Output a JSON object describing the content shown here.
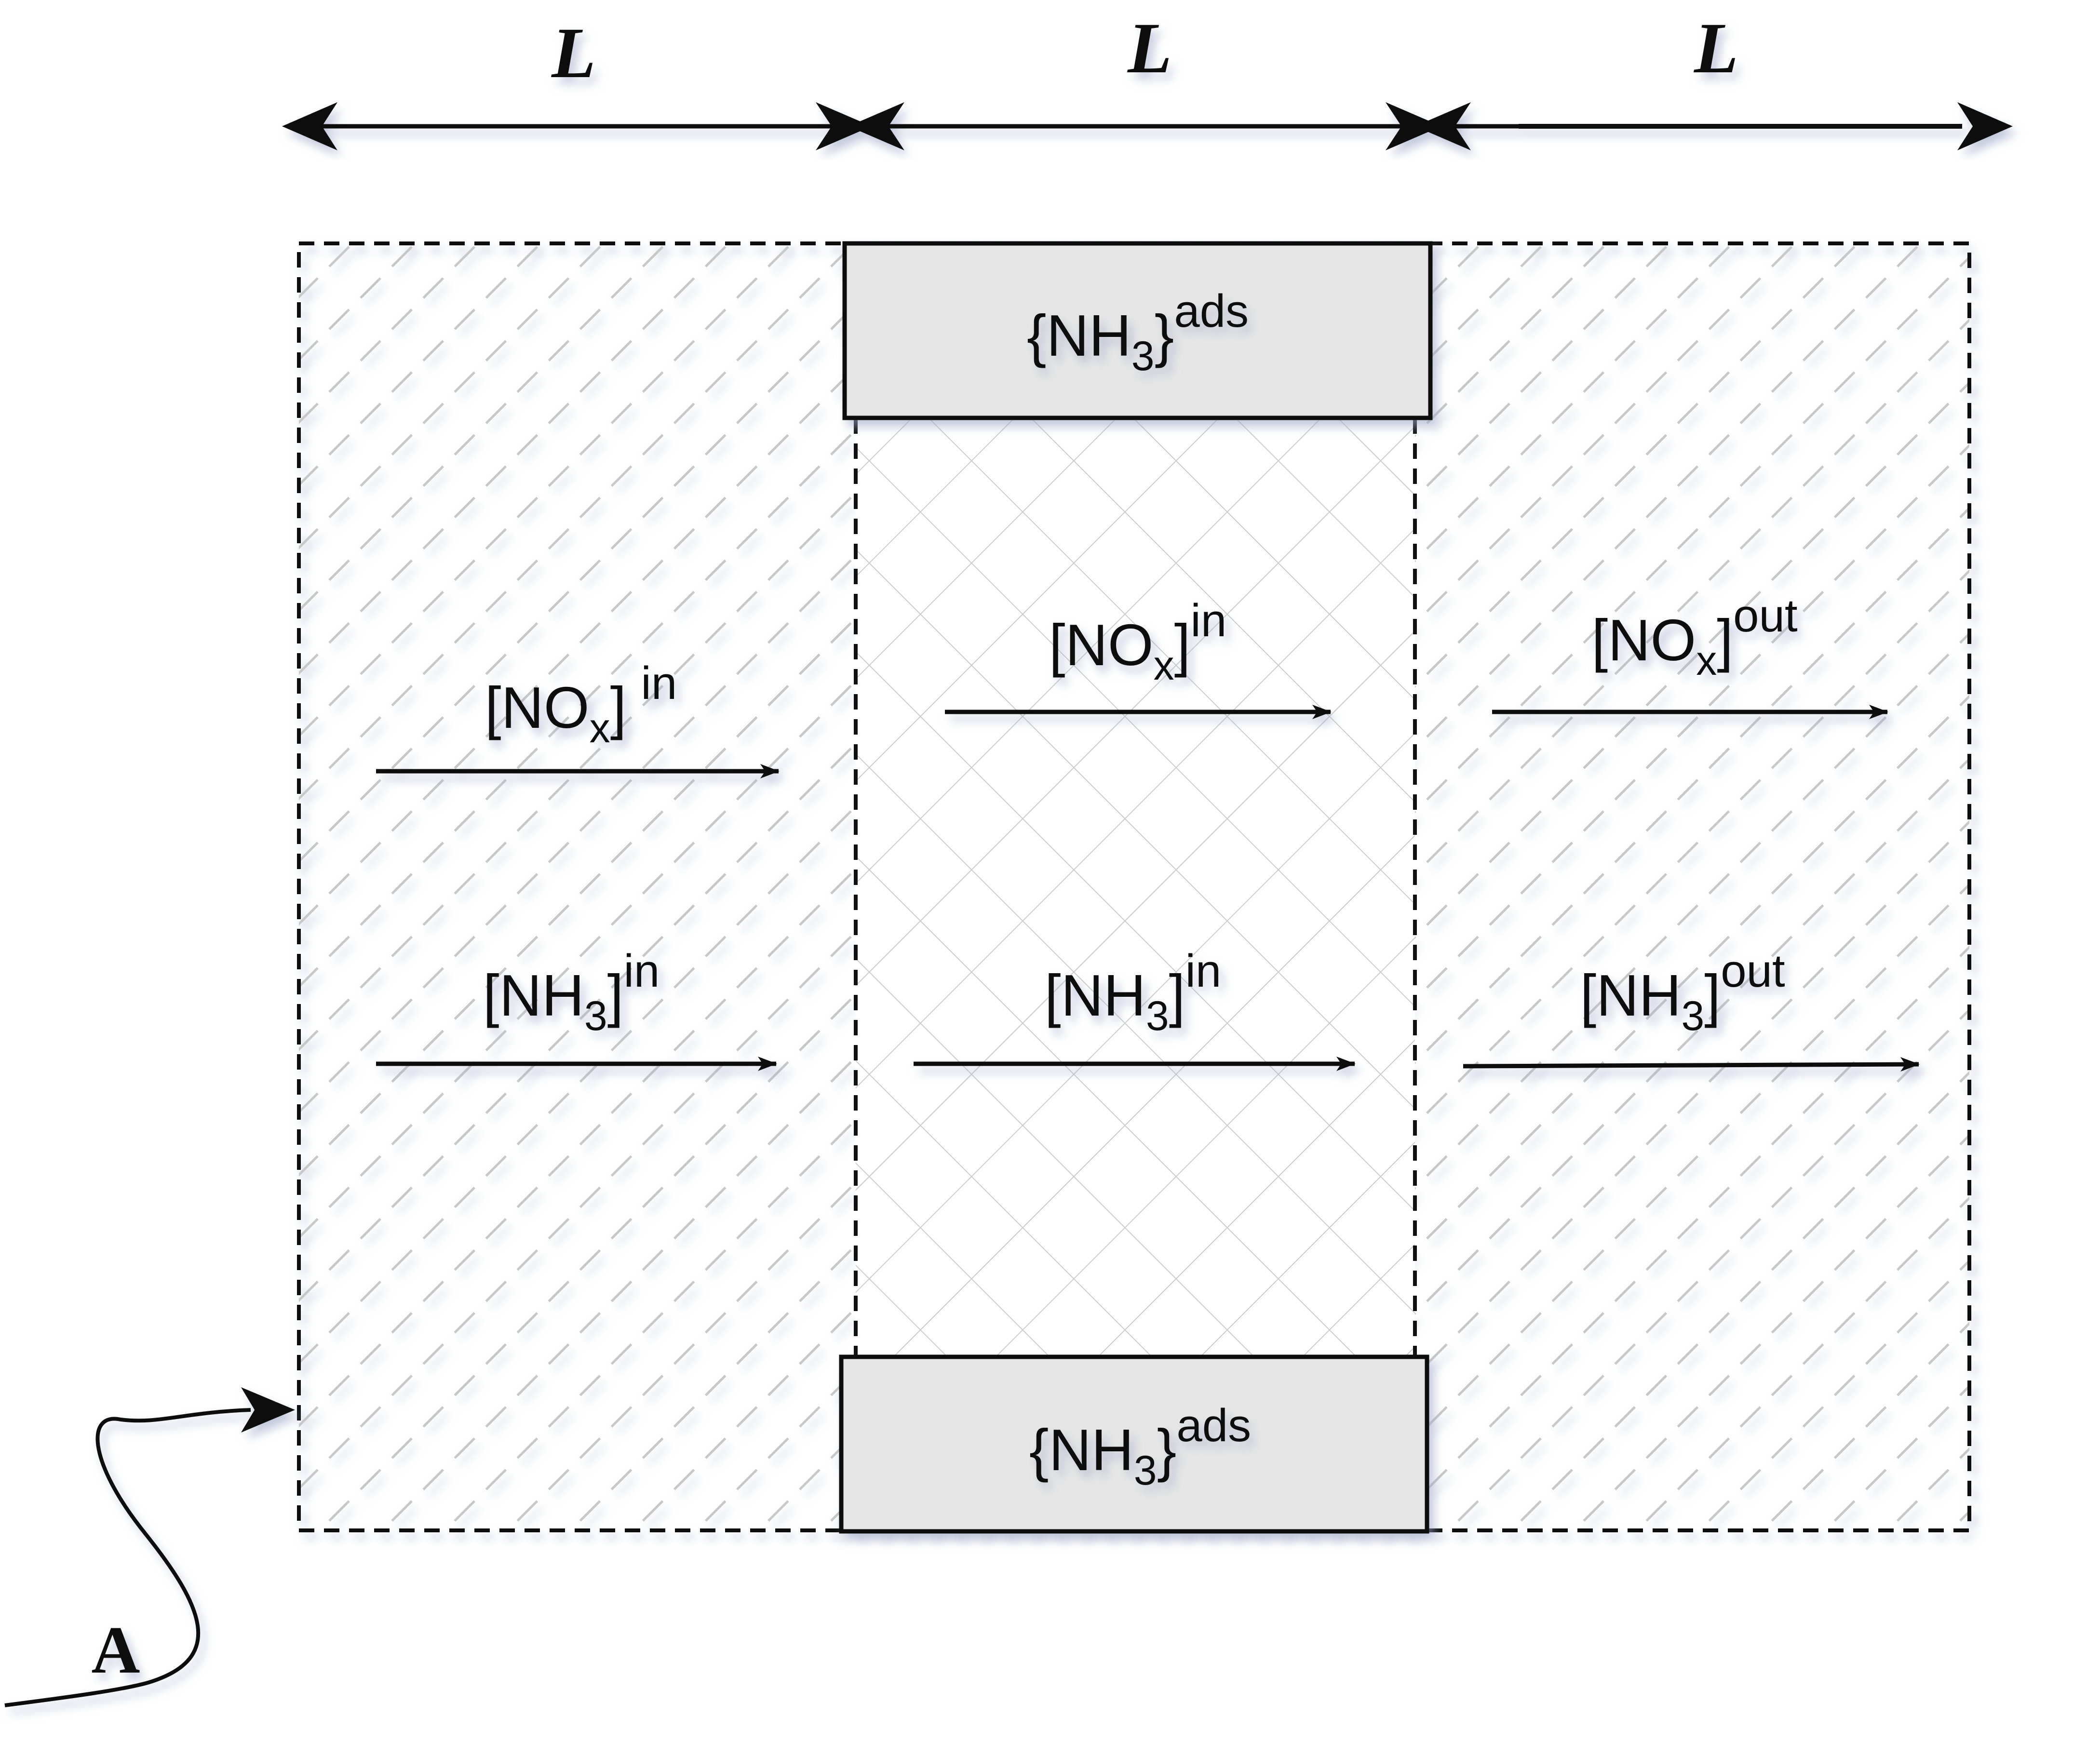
{
  "diagram": {
    "dimension_label": "L",
    "curve_label": "A",
    "adsorbed": {
      "base": "{NH",
      "sub": "3",
      "close": "}",
      "sup": "ads"
    },
    "left": {
      "nox": {
        "base": "[NO",
        "sub": "x",
        "close": "]",
        "sup": "in"
      },
      "nh3": {
        "base": "[NH",
        "sub": "3",
        "close": "]",
        "sup": "in"
      }
    },
    "middle": {
      "nox": {
        "base": "[NO",
        "sub": "x",
        "close": "]",
        "sup": "in"
      },
      "nh3": {
        "base": "[NH",
        "sub": "3",
        "close": "]",
        "sup": "in"
      }
    },
    "right": {
      "nox": {
        "base": "[NO",
        "sub": "x",
        "close": "]",
        "sup": "out"
      },
      "nh3": {
        "base": "[NH",
        "sub": "3",
        "close": "]",
        "sup": "out"
      }
    },
    "colors": {
      "line": "#111111",
      "block_fill": "#e6e6e6",
      "hatch": "#c8c8c8",
      "shadow": "#9aa3c7"
    }
  }
}
